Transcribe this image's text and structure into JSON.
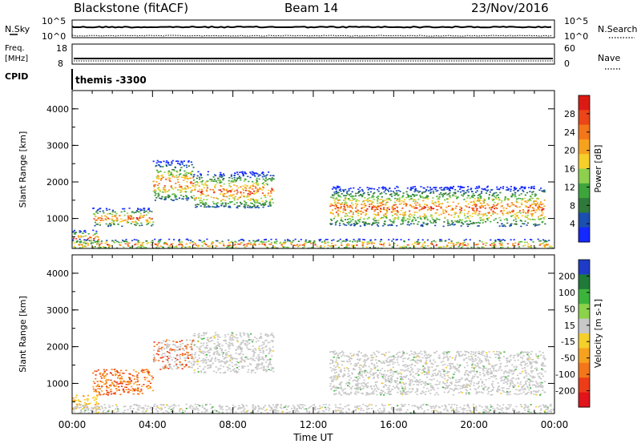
{
  "header": {
    "station": "Blackstone (fitACF)",
    "beam": "Beam 14",
    "date": "23/Nov/2016"
  },
  "top_panels": {
    "nsky_label": "N.Sky",
    "nsearch_label": "N.Search",
    "freq_label_1": "Freq.",
    "freq_label_2": "[MHz]",
    "nave_label": "Nave",
    "cpid_label": "CPID",
    "cpid_text": "themis -3300",
    "n_left_ticks": [
      "10^5",
      "10^0"
    ],
    "n_right_ticks": [
      "10^5",
      "10^0"
    ],
    "freq_ticks": [
      "18",
      "8"
    ],
    "nave_ticks": [
      "60",
      "0"
    ]
  },
  "chart_data": [
    {
      "type": "heatmap",
      "title": "",
      "xlabel": "",
      "ylabel": "Slant Range [km]",
      "xlim": [
        0,
        24
      ],
      "ylim": [
        180,
        4500
      ],
      "yticks": [
        1000,
        2000,
        3000,
        4000
      ],
      "colorbar": {
        "label": "Power [dB]",
        "ticks": [
          "4",
          "8",
          "12",
          "16",
          "20",
          "24",
          "28"
        ],
        "colors": [
          "#1428ff",
          "#1b4fb0",
          "#2f7a3a",
          "#3ea53c",
          "#8ed04e",
          "#f5cf2a",
          "#f7a21e",
          "#f4761a",
          "#ec4518",
          "#dc1a14"
        ]
      },
      "echo_bands": [
        {
          "x": [
            0.0,
            1.3
          ],
          "y": [
            300,
            700
          ]
        },
        {
          "x": [
            1.0,
            4.0
          ],
          "y": [
            800,
            1300
          ]
        },
        {
          "x": [
            4.0,
            6.0
          ],
          "y": [
            1500,
            2600
          ]
        },
        {
          "x": [
            6.0,
            10.0
          ],
          "y": [
            1300,
            2300
          ]
        },
        {
          "x": [
            12.8,
            23.5
          ],
          "y": [
            800,
            1900
          ]
        },
        {
          "x": [
            0.0,
            24.0
          ],
          "y": [
            180,
            450
          ]
        }
      ]
    },
    {
      "type": "heatmap",
      "title": "",
      "xlabel": "Time UT",
      "ylabel": "Slant Range [km]",
      "xlim": [
        0,
        24
      ],
      "ylim": [
        180,
        4500
      ],
      "xticks": [
        "00:00",
        "04:00",
        "08:00",
        "12:00",
        "16:00",
        "20:00",
        "00:00"
      ],
      "yticks": [
        1000,
        2000,
        3000,
        4000
      ],
      "colorbar": {
        "label": "Velocity [m s-1]",
        "ticks": [
          "200",
          "100",
          "50",
          "15",
          "-15",
          "-50",
          "-100",
          "-200"
        ],
        "colors": [
          "#1e3cc8",
          "#1f7a3a",
          "#3cb43c",
          "#8cd24a",
          "#c8c8c8",
          "#f5cf2a",
          "#f7a21e",
          "#f4761a",
          "#ec3c18",
          "#e0141a"
        ]
      },
      "echo_bands": [
        {
          "x": [
            0.0,
            1.3
          ],
          "y": [
            300,
            700
          ]
        },
        {
          "x": [
            1.0,
            4.0
          ],
          "y": [
            700,
            1400
          ]
        },
        {
          "x": [
            4.0,
            6.0
          ],
          "y": [
            1400,
            2200
          ]
        },
        {
          "x": [
            6.0,
            10.0
          ],
          "y": [
            1300,
            2400
          ]
        },
        {
          "x": [
            12.8,
            23.5
          ],
          "y": [
            700,
            1900
          ]
        },
        {
          "x": [
            0.0,
            24.0
          ],
          "y": [
            180,
            450
          ]
        }
      ]
    }
  ]
}
